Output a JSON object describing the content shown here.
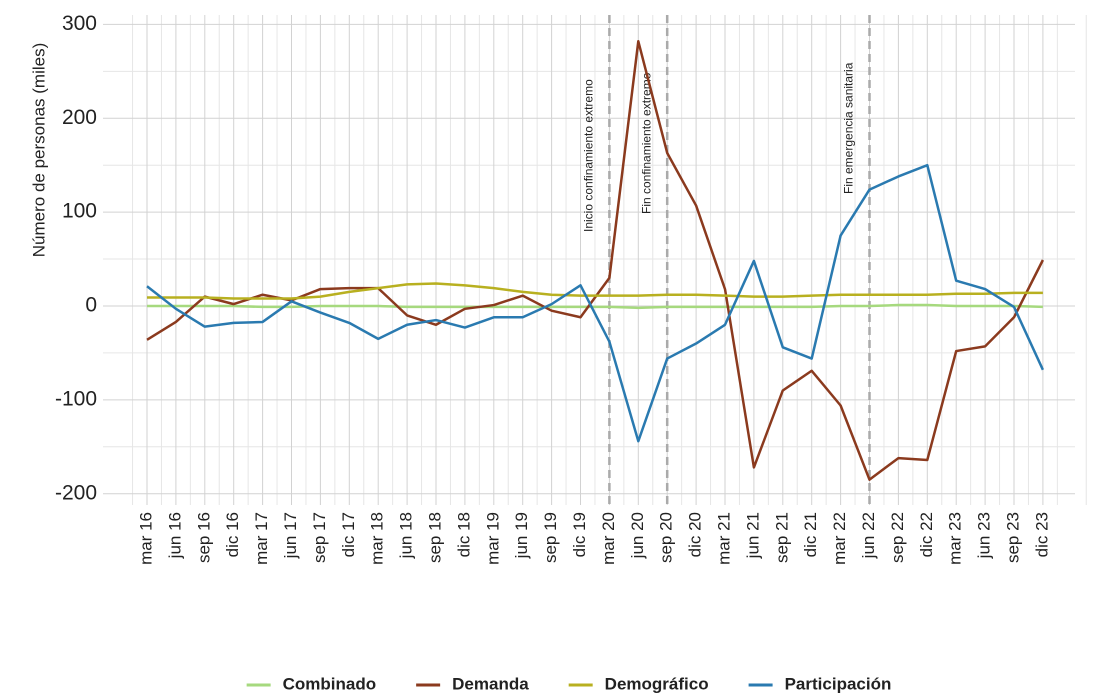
{
  "chart_data": {
    "type": "line",
    "y_label": "Número de personas (miles)",
    "categories": [
      "mar 16",
      "jun 16",
      "sep 16",
      "dic 16",
      "mar 17",
      "jun 17",
      "sep 17",
      "dic 17",
      "mar 18",
      "jun 18",
      "sep 18",
      "dic 18",
      "mar 19",
      "jun 19",
      "sep 19",
      "dic 19",
      "mar 20",
      "jun 20",
      "sep 20",
      "dic 20",
      "mar 21",
      "jun 21",
      "sep 21",
      "dic 21",
      "mar 22",
      "jun 22",
      "sep 22",
      "dic 22",
      "mar 23",
      "jun 23",
      "sep 23",
      "dic 23"
    ],
    "series": [
      {
        "name": "Combinado",
        "color": "#a6d97e",
        "values": [
          0,
          0,
          0,
          0,
          -1,
          -1,
          0,
          0,
          0,
          -1,
          -1,
          -1,
          -1,
          -1,
          -1,
          -1,
          -1,
          -2,
          -1,
          -1,
          -1,
          -1,
          -1,
          -1,
          0,
          0,
          1,
          1,
          0,
          0,
          0,
          -1
        ]
      },
      {
        "name": "Demanda",
        "color": "#8b3a1e",
        "values": [
          -36,
          -17,
          10,
          2,
          12,
          6,
          18,
          19,
          19,
          -10,
          -20,
          -3,
          1,
          11,
          -5,
          -12,
          30,
          282,
          163,
          107,
          18,
          -172,
          -90,
          -69,
          -106,
          -185,
          -162,
          -164,
          -48,
          -43,
          -12,
          49
        ]
      },
      {
        "name": "Demográfico",
        "color": "#b8b020",
        "values": [
          9,
          9,
          9,
          8,
          8,
          8,
          10,
          15,
          19,
          23,
          24,
          22,
          19,
          15,
          12,
          11,
          11,
          11,
          12,
          12,
          11,
          10,
          10,
          11,
          12,
          12,
          12,
          12,
          13,
          13,
          14,
          14
        ]
      },
      {
        "name": "Participación",
        "color": "#2a7ab0",
        "values": [
          21,
          -3,
          -22,
          -18,
          -17,
          5,
          -7,
          -18,
          -35,
          -20,
          -15,
          -23,
          -12,
          -12,
          2,
          22,
          -38,
          -144,
          -56,
          -40,
          -20,
          48,
          -44,
          -56,
          75,
          124,
          138,
          150,
          27,
          18,
          -1,
          -68
        ]
      }
    ],
    "annotations": [
      {
        "text": "Inicio confinamiento extremo",
        "x": "mar 20"
      },
      {
        "text": "Fin confinamiento extremo",
        "x": "sep 20"
      },
      {
        "text": "Fin emergencia sanitaria",
        "x": "jun 22"
      }
    ],
    "ylim": [
      -212,
      310
    ],
    "yticks": [
      -200,
      -100,
      0,
      100,
      200,
      300
    ],
    "grid": true,
    "legend": "bottom"
  }
}
